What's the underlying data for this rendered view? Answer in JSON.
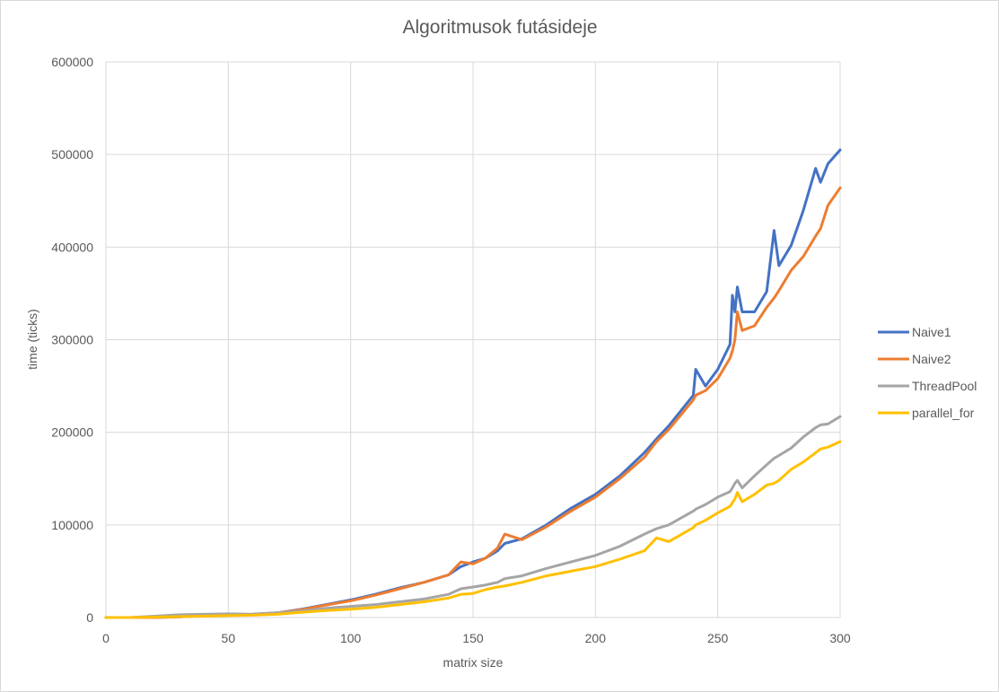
{
  "chart_data": {
    "type": "line",
    "title": "Algoritmusok futásideje",
    "xlabel": "matrix size",
    "ylabel": "time (ticks)",
    "xlim": [
      0,
      300
    ],
    "ylim": [
      0,
      600000
    ],
    "x_ticks": [
      0,
      50,
      100,
      150,
      200,
      250,
      300
    ],
    "y_ticks": [
      0,
      100000,
      200000,
      300000,
      400000,
      500000,
      600000
    ],
    "grid": true,
    "legend_position": "right",
    "x": [
      0,
      10,
      20,
      30,
      40,
      50,
      60,
      70,
      80,
      90,
      100,
      110,
      120,
      130,
      140,
      145,
      150,
      155,
      160,
      163,
      170,
      180,
      190,
      200,
      210,
      220,
      225,
      230,
      240,
      241,
      245,
      250,
      255,
      256,
      257,
      258,
      260,
      265,
      270,
      273,
      275,
      280,
      285,
      290,
      292,
      295,
      300
    ],
    "series": [
      {
        "name": "Naive1",
        "color": "#4472C4",
        "values": [
          0,
          0,
          0,
          800,
          2000,
          3000,
          3500,
          5000,
          9000,
          14000,
          19000,
          25000,
          32000,
          38000,
          46000,
          55000,
          60000,
          64000,
          72000,
          80000,
          85000,
          100000,
          118000,
          133000,
          153000,
          178000,
          193000,
          207000,
          240000,
          268000,
          250000,
          268000,
          295000,
          348000,
          330000,
          357000,
          330000,
          330000,
          352000,
          418000,
          380000,
          402000,
          440000,
          485000,
          470000,
          490000,
          505000
        ]
      },
      {
        "name": "Naive2",
        "color": "#ED7D31",
        "values": [
          0,
          0,
          0,
          800,
          2000,
          3000,
          3500,
          5000,
          8500,
          13500,
          18000,
          24000,
          31000,
          38000,
          46000,
          60000,
          58000,
          64000,
          75000,
          90000,
          84000,
          98000,
          115000,
          130000,
          150000,
          173000,
          190000,
          203000,
          235000,
          240000,
          245000,
          258000,
          280000,
          288000,
          300000,
          330000,
          310000,
          315000,
          335000,
          345000,
          353000,
          375000,
          390000,
          412000,
          420000,
          445000,
          464000
        ]
      },
      {
        "name": "ThreadPool",
        "color": "#A5A5A5",
        "values": [
          0,
          0,
          1500,
          3000,
          3500,
          4000,
          3500,
          5000,
          7000,
          10000,
          12000,
          14000,
          17000,
          20000,
          25000,
          31000,
          33000,
          35000,
          38000,
          42000,
          45000,
          53000,
          60000,
          67000,
          77000,
          90000,
          96000,
          100000,
          115000,
          117000,
          122000,
          130000,
          136000,
          140000,
          145000,
          148000,
          140000,
          153000,
          165000,
          172000,
          175000,
          183000,
          195000,
          205000,
          208000,
          209000,
          217000
        ]
      },
      {
        "name": "parallel_for",
        "color": "#FFC000",
        "values": [
          0,
          0,
          500,
          1000,
          1500,
          2000,
          2500,
          3500,
          5500,
          7500,
          9000,
          11000,
          14000,
          17000,
          21000,
          25000,
          26000,
          30000,
          33000,
          34000,
          38000,
          45000,
          50000,
          55000,
          63000,
          72000,
          86000,
          82000,
          97000,
          100000,
          105000,
          113000,
          120000,
          124000,
          128000,
          135000,
          125000,
          133000,
          143000,
          145000,
          148000,
          160000,
          168000,
          178000,
          182000,
          184000,
          190000
        ]
      }
    ]
  }
}
